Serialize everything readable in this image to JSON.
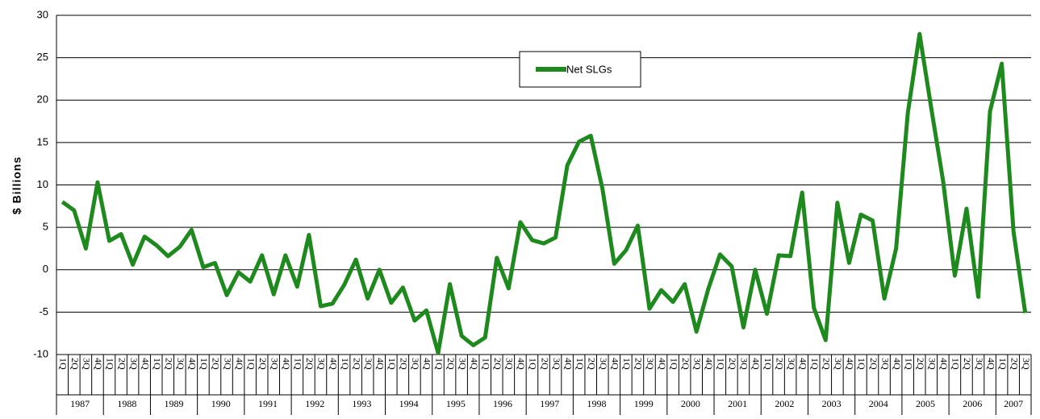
{
  "chart_data": {
    "type": "line",
    "y_label": "$ Billions",
    "categories": [
      "1Q",
      "2Q",
      "3Q",
      "4Q",
      "1Q",
      "2Q",
      "3Q",
      "4Q",
      "1Q",
      "2Q",
      "3Q",
      "4Q",
      "1Q",
      "2Q",
      "3Q",
      "4Q",
      "1Q",
      "2Q",
      "3Q",
      "4Q",
      "1Q",
      "2Q",
      "3Q",
      "4Q",
      "1Q",
      "2Q",
      "3Q",
      "4Q",
      "1Q",
      "2Q",
      "3Q",
      "4Q",
      "1Q",
      "2Q",
      "3Q",
      "4Q",
      "1Q",
      "2Q",
      "3Q",
      "4Q",
      "1Q",
      "2Q",
      "3Q",
      "4Q",
      "1Q",
      "2Q",
      "3Q",
      "4Q",
      "1Q",
      "2Q",
      "3Q",
      "4Q",
      "1Q",
      "2Q",
      "3Q",
      "4Q",
      "1Q",
      "2Q",
      "3Q",
      "4Q",
      "1Q",
      "2Q",
      "3Q",
      "4Q",
      "1Q",
      "2Q",
      "3Q",
      "4Q",
      "1Q",
      "2Q",
      "3Q",
      "4Q",
      "1Q",
      "2Q",
      "3Q",
      "4Q",
      "1Q",
      "2Q",
      "3Q",
      "4Q",
      "1Q",
      "2Q",
      "3Q"
    ],
    "years": [
      "1987",
      "1988",
      "1989",
      "1990",
      "1991",
      "1992",
      "1993",
      "1994",
      "1995",
      "1996",
      "1997",
      "1998",
      "1999",
      "2000",
      "2001",
      "2002",
      "2003",
      "2004",
      "2005",
      "2006",
      "2007"
    ],
    "series": [
      {
        "name": "Net SLGs",
        "color": "#1e8a1e",
        "values": [
          8,
          7,
          2.5,
          10.3,
          3.4,
          4.2,
          0.6,
          3.9,
          2.9,
          1.6,
          2.7,
          4.7,
          0.3,
          0.8,
          -3,
          -0.3,
          -1.4,
          1.7,
          -2.9,
          1.7,
          -2,
          4.1,
          -4.3,
          -4,
          -1.8,
          1.2,
          -3.4,
          0,
          -3.9,
          -2.1,
          -6,
          -4.8,
          -9.8,
          -1.7,
          -7.8,
          -8.9,
          -8,
          1.4,
          -2.2,
          5.6,
          3.5,
          3.1,
          3.8,
          12.3,
          15.1,
          15.8,
          9.5,
          0.7,
          2.3,
          5.2,
          -4.6,
          -2.4,
          -3.8,
          -1.7,
          -7.3,
          -2.3,
          1.8,
          0.4,
          -6.8,
          0,
          -5.2,
          1.7,
          1.6,
          9.1,
          -4.5,
          -8.3,
          7.9,
          0.8,
          6.5,
          5.8,
          -3.4,
          2.5,
          18.5,
          27.8,
          19,
          10.5,
          -0.7,
          7.2,
          -3.2,
          18.7,
          24.3,
          4.5,
          -5.1
        ]
      }
    ],
    "ylim": [
      -10,
      30
    ],
    "yticks": [
      -10,
      -5,
      0,
      5,
      10,
      15,
      20,
      25,
      30
    ],
    "grid": true,
    "legend": "upper center"
  }
}
